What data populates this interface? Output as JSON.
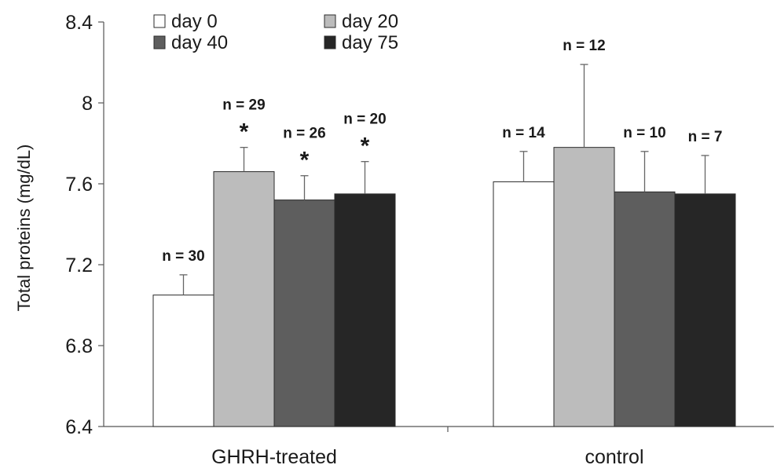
{
  "chart_data": {
    "type": "bar",
    "ylabel": "Total proteins (mg/dL)",
    "ylim": [
      6.4,
      8.4
    ],
    "yticks": [
      "6.4",
      "6.8",
      "7.2",
      "7.6",
      "8",
      "8.4"
    ],
    "categories": [
      "GHRH-treated",
      "control"
    ],
    "series": [
      {
        "name": "day 0",
        "color": "#ffffff",
        "values": [
          7.05,
          7.61
        ],
        "errors": [
          0.1,
          0.15
        ],
        "n": [
          "n = 30",
          "n = 14"
        ],
        "significant": [
          false,
          false
        ]
      },
      {
        "name": "day 20",
        "color": "#bcbcbc",
        "values": [
          7.66,
          7.78
        ],
        "errors": [
          0.12,
          0.41
        ],
        "n": [
          "n = 29",
          "n = 12"
        ],
        "significant": [
          true,
          false
        ]
      },
      {
        "name": "day 40",
        "color": "#5e5e5e",
        "values": [
          7.52,
          7.56
        ],
        "errors": [
          0.12,
          0.2
        ],
        "n": [
          "n = 26",
          "n = 10"
        ],
        "significant": [
          true,
          false
        ]
      },
      {
        "name": "day 75",
        "color": "#262626",
        "values": [
          7.55,
          7.55
        ],
        "errors": [
          0.16,
          0.19
        ],
        "n": [
          "n = 20",
          "n = 7"
        ],
        "significant": [
          true,
          false
        ]
      }
    ],
    "significance_marker": "*",
    "legend_placement": "top-left",
    "grid": false
  }
}
